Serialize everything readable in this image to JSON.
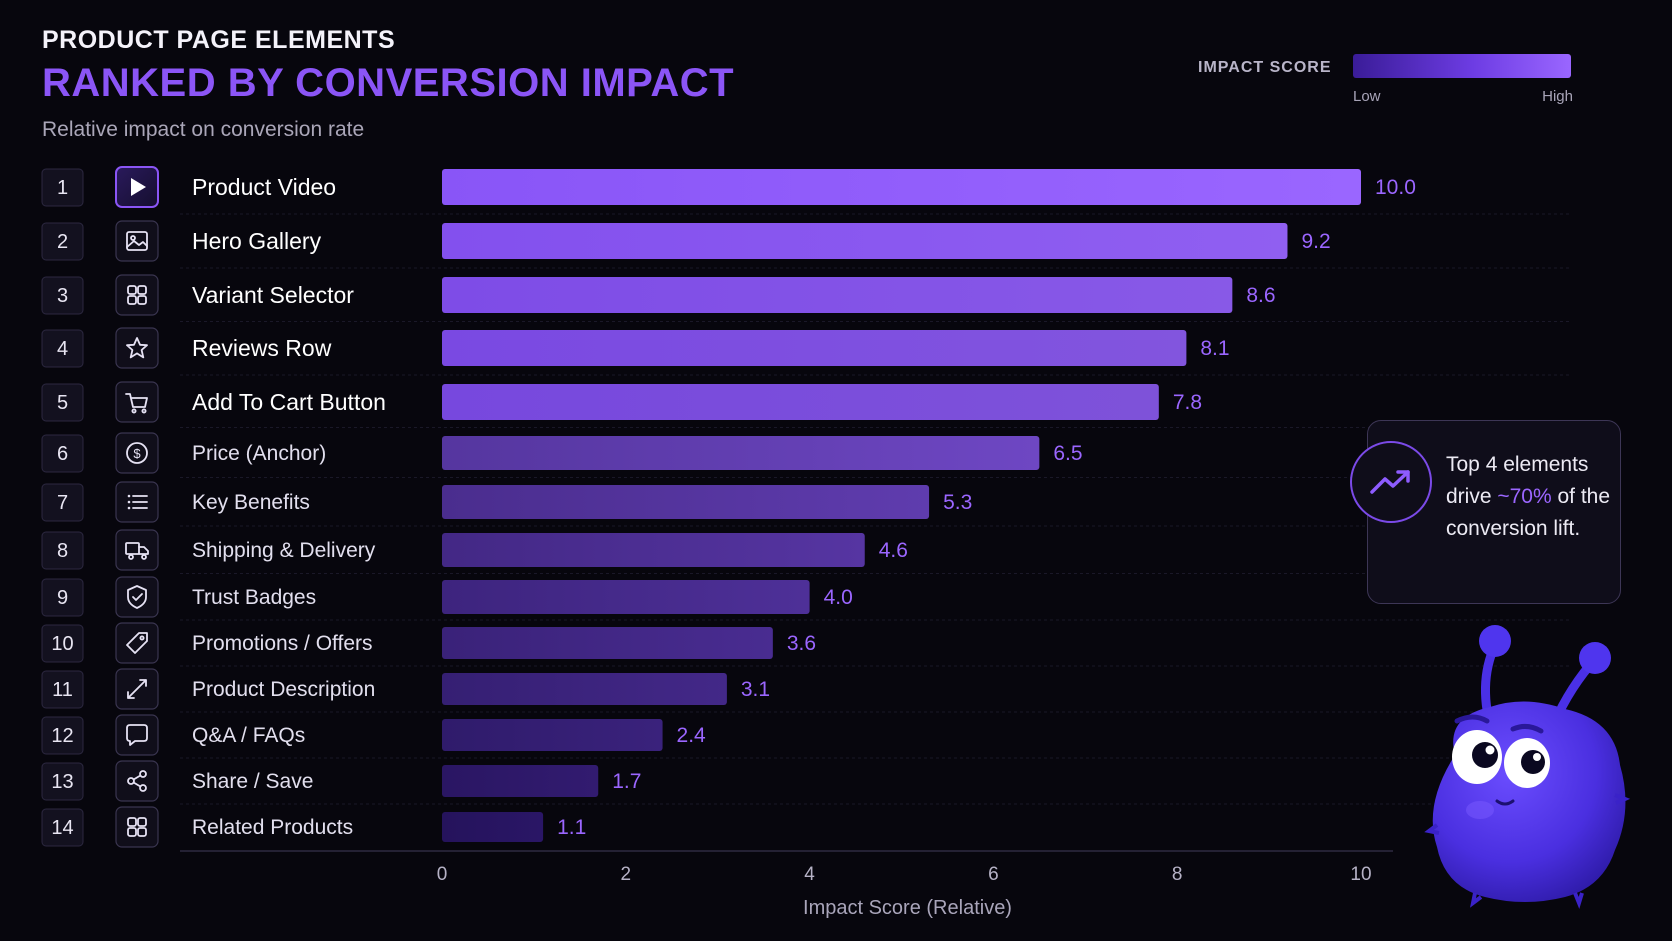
{
  "header": {
    "kicker": "PRODUCT PAGE ELEMENTS",
    "title": "RANKED BY CONVERSION IMPACT",
    "subtitle": "Relative impact on conversion rate"
  },
  "legend": {
    "title": "IMPACT SCORE",
    "low": "Low",
    "high": "High"
  },
  "callout": {
    "text_before": "Top 4 elements drive ",
    "highlight": "~70%",
    "text_after": " of the conversion lift.",
    "icon": "trending-up-icon"
  },
  "colors": {
    "background": "#07060d",
    "accent": "#8b55f6",
    "bar_high": "#9a66ff",
    "bar_low": "#2a1666",
    "value_label": "#9b66ff"
  },
  "chart_data": {
    "type": "bar",
    "orientation": "horizontal",
    "categories": [
      "Product Video",
      "Hero Gallery",
      "Variant Selector",
      "Reviews Row",
      "Add To Cart Button",
      "Price (Anchor)",
      "Key Benefits",
      "Shipping & Delivery",
      "Trust Badges",
      "Promotions / Offers",
      "Product Description",
      "Q&A / FAQs",
      "Share / Save",
      "Related Products"
    ],
    "ranks": [
      "1",
      "2",
      "3",
      "4",
      "5",
      "6",
      "7",
      "8",
      "9",
      "10",
      "11",
      "12",
      "13",
      "14"
    ],
    "icons": [
      "play-icon",
      "image-icon",
      "grid-icon",
      "star-icon",
      "cart-icon",
      "dollar-circle-icon",
      "list-icon",
      "truck-icon",
      "shield-icon",
      "tag-icon",
      "expand-icon",
      "chat-bubble-icon",
      "share-icon",
      "grid-icon"
    ],
    "values": [
      10.0,
      9.2,
      8.6,
      8.1,
      7.8,
      6.5,
      5.3,
      4.6,
      4.0,
      3.6,
      3.1,
      2.4,
      1.7,
      1.1
    ],
    "value_labels": [
      "10.0",
      "9.2",
      "8.6",
      "8.1",
      "7.8",
      "6.5",
      "5.3",
      "4.6",
      "4.0",
      "3.6",
      "3.1",
      "2.4",
      "1.7",
      "1.1"
    ],
    "xlabel": "Impact Score (Relative)",
    "xticks": [
      "0",
      "2",
      "4",
      "6",
      "8",
      "10"
    ],
    "xlim": [
      0,
      10
    ],
    "grid": false,
    "legend": "top-right"
  }
}
